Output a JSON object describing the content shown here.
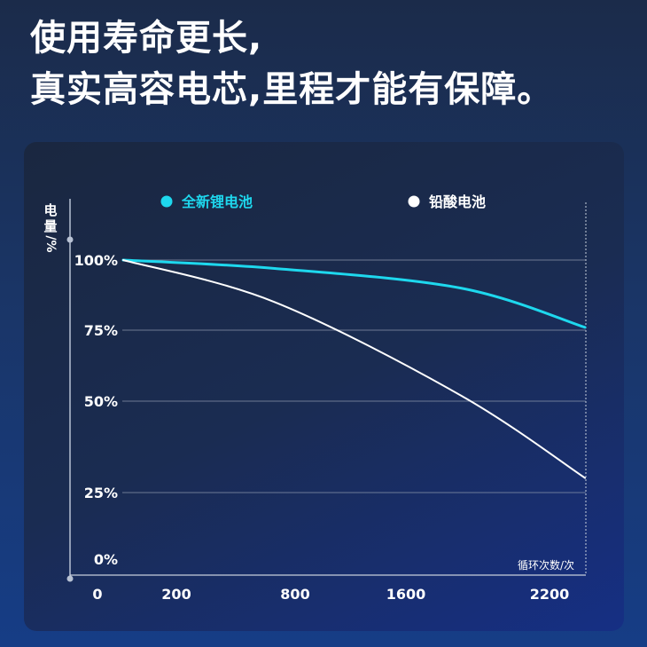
{
  "headline": {
    "line1": "使用寿命更长,",
    "line2": "真实高容电芯,里程才能有保障。"
  },
  "chart_data": {
    "type": "line",
    "ylabel": "电量/%",
    "xlabel": "循环次数/次",
    "x_ticks": [
      "0",
      "200",
      "800",
      "1600",
      "2200"
    ],
    "y_ticks": [
      "100%",
      "75%",
      "50%",
      "25%",
      "0%"
    ],
    "ylim": [
      0,
      100
    ],
    "grid": true,
    "legend_position": "top",
    "series": [
      {
        "name": "全新锂电池",
        "color": "#1ed8ee",
        "x": [
          "200",
          "800",
          "1600",
          "2200"
        ],
        "values": [
          100,
          97,
          90,
          76
        ]
      },
      {
        "name": "铅酸电池",
        "color": "#ffffff",
        "x": [
          "200",
          "800",
          "1600",
          "2200"
        ],
        "values": [
          100,
          85,
          52,
          29
        ]
      }
    ]
  },
  "colors": {
    "lithium": "#1ed8ee",
    "lead_acid": "#ffffff",
    "axis": "#b8c2d4",
    "grid": "#8a94aa"
  }
}
